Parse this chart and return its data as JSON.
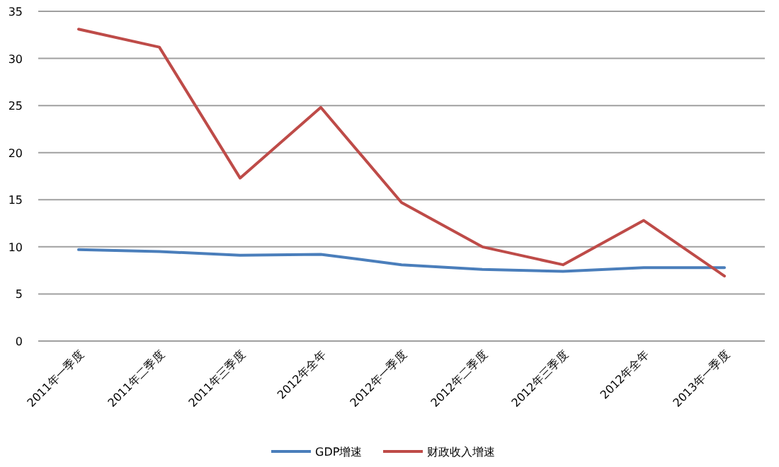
{
  "chart_data": {
    "type": "line",
    "categories": [
      "2011年一季度",
      "2011年二季度",
      "2011年三季度",
      "2012年全年",
      "2012年一季度",
      "2012年二季度",
      "2012年三季度",
      "2012年全年",
      "2013年一季度"
    ],
    "series": [
      {
        "name": "GDP增速",
        "color": "#4a7ebb",
        "values": [
          9.7,
          9.5,
          9.1,
          9.2,
          8.1,
          7.6,
          7.4,
          7.8,
          7.8
        ]
      },
      {
        "name": "财政收入增速",
        "color": "#be4b48",
        "values": [
          33.1,
          31.2,
          17.3,
          24.8,
          14.7,
          10.0,
          8.1,
          12.8,
          6.9
        ]
      }
    ],
    "ylim": [
      0,
      35
    ],
    "yticks": [
      0,
      5,
      10,
      15,
      20,
      25,
      30,
      35
    ],
    "grid": "y",
    "legend": "bottom",
    "marker": "none",
    "line_style": "solid"
  }
}
